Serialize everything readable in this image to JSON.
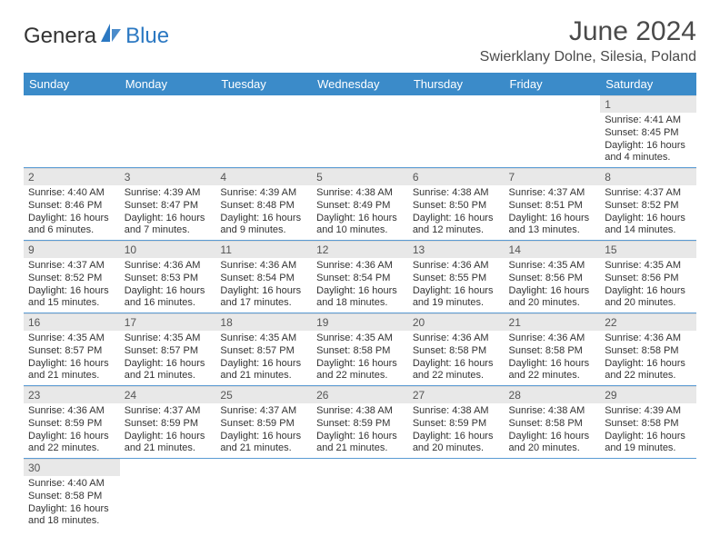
{
  "logo": {
    "part1": "Genera",
    "part2": "Blue"
  },
  "title": "June 2024",
  "location": "Swierklany Dolne, Silesia, Poland",
  "colors": {
    "header_bg": "#3b8bc9",
    "header_text": "#ffffff",
    "row_divider": "#5a9bd4",
    "daynum_bg": "#e8e8e8",
    "logo_blue": "#2b78c2",
    "text": "#333333"
  },
  "weekdays": [
    "Sunday",
    "Monday",
    "Tuesday",
    "Wednesday",
    "Thursday",
    "Friday",
    "Saturday"
  ],
  "weeks": [
    [
      null,
      null,
      null,
      null,
      null,
      null,
      {
        "n": "1",
        "sr": "4:41 AM",
        "ss": "8:45 PM",
        "dl": "16 hours and 4 minutes."
      }
    ],
    [
      {
        "n": "2",
        "sr": "4:40 AM",
        "ss": "8:46 PM",
        "dl": "16 hours and 6 minutes."
      },
      {
        "n": "3",
        "sr": "4:39 AM",
        "ss": "8:47 PM",
        "dl": "16 hours and 7 minutes."
      },
      {
        "n": "4",
        "sr": "4:39 AM",
        "ss": "8:48 PM",
        "dl": "16 hours and 9 minutes."
      },
      {
        "n": "5",
        "sr": "4:38 AM",
        "ss": "8:49 PM",
        "dl": "16 hours and 10 minutes."
      },
      {
        "n": "6",
        "sr": "4:38 AM",
        "ss": "8:50 PM",
        "dl": "16 hours and 12 minutes."
      },
      {
        "n": "7",
        "sr": "4:37 AM",
        "ss": "8:51 PM",
        "dl": "16 hours and 13 minutes."
      },
      {
        "n": "8",
        "sr": "4:37 AM",
        "ss": "8:52 PM",
        "dl": "16 hours and 14 minutes."
      }
    ],
    [
      {
        "n": "9",
        "sr": "4:37 AM",
        "ss": "8:52 PM",
        "dl": "16 hours and 15 minutes."
      },
      {
        "n": "10",
        "sr": "4:36 AM",
        "ss": "8:53 PM",
        "dl": "16 hours and 16 minutes."
      },
      {
        "n": "11",
        "sr": "4:36 AM",
        "ss": "8:54 PM",
        "dl": "16 hours and 17 minutes."
      },
      {
        "n": "12",
        "sr": "4:36 AM",
        "ss": "8:54 PM",
        "dl": "16 hours and 18 minutes."
      },
      {
        "n": "13",
        "sr": "4:36 AM",
        "ss": "8:55 PM",
        "dl": "16 hours and 19 minutes."
      },
      {
        "n": "14",
        "sr": "4:35 AM",
        "ss": "8:56 PM",
        "dl": "16 hours and 20 minutes."
      },
      {
        "n": "15",
        "sr": "4:35 AM",
        "ss": "8:56 PM",
        "dl": "16 hours and 20 minutes."
      }
    ],
    [
      {
        "n": "16",
        "sr": "4:35 AM",
        "ss": "8:57 PM",
        "dl": "16 hours and 21 minutes."
      },
      {
        "n": "17",
        "sr": "4:35 AM",
        "ss": "8:57 PM",
        "dl": "16 hours and 21 minutes."
      },
      {
        "n": "18",
        "sr": "4:35 AM",
        "ss": "8:57 PM",
        "dl": "16 hours and 21 minutes."
      },
      {
        "n": "19",
        "sr": "4:35 AM",
        "ss": "8:58 PM",
        "dl": "16 hours and 22 minutes."
      },
      {
        "n": "20",
        "sr": "4:36 AM",
        "ss": "8:58 PM",
        "dl": "16 hours and 22 minutes."
      },
      {
        "n": "21",
        "sr": "4:36 AM",
        "ss": "8:58 PM",
        "dl": "16 hours and 22 minutes."
      },
      {
        "n": "22",
        "sr": "4:36 AM",
        "ss": "8:58 PM",
        "dl": "16 hours and 22 minutes."
      }
    ],
    [
      {
        "n": "23",
        "sr": "4:36 AM",
        "ss": "8:59 PM",
        "dl": "16 hours and 22 minutes."
      },
      {
        "n": "24",
        "sr": "4:37 AM",
        "ss": "8:59 PM",
        "dl": "16 hours and 21 minutes."
      },
      {
        "n": "25",
        "sr": "4:37 AM",
        "ss": "8:59 PM",
        "dl": "16 hours and 21 minutes."
      },
      {
        "n": "26",
        "sr": "4:38 AM",
        "ss": "8:59 PM",
        "dl": "16 hours and 21 minutes."
      },
      {
        "n": "27",
        "sr": "4:38 AM",
        "ss": "8:59 PM",
        "dl": "16 hours and 20 minutes."
      },
      {
        "n": "28",
        "sr": "4:38 AM",
        "ss": "8:58 PM",
        "dl": "16 hours and 20 minutes."
      },
      {
        "n": "29",
        "sr": "4:39 AM",
        "ss": "8:58 PM",
        "dl": "16 hours and 19 minutes."
      }
    ],
    [
      {
        "n": "30",
        "sr": "4:40 AM",
        "ss": "8:58 PM",
        "dl": "16 hours and 18 minutes."
      },
      null,
      null,
      null,
      null,
      null,
      null
    ]
  ],
  "labels": {
    "sunrise": "Sunrise:",
    "sunset": "Sunset:",
    "daylight": "Daylight:"
  }
}
